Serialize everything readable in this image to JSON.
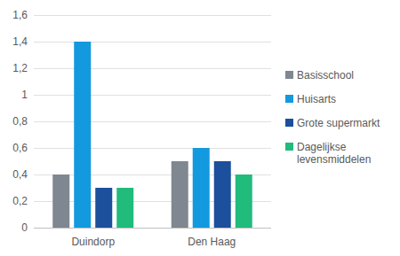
{
  "chart_data": {
    "type": "bar",
    "categories": [
      "Duindorp",
      "Den Haag"
    ],
    "series": [
      {
        "name": "Basisschool",
        "color": "#7f8790",
        "values": [
          0.4,
          0.5
        ]
      },
      {
        "name": "Huisarts",
        "color": "#1299de",
        "values": [
          1.4,
          0.6
        ]
      },
      {
        "name": "Grote supermarkt",
        "color": "#1c4f9c",
        "values": [
          0.3,
          0.5
        ]
      },
      {
        "name": "Dagelijkse levensmiddelen",
        "color": "#21bb7c",
        "values": [
          0.3,
          0.4
        ]
      }
    ],
    "ylim": [
      0,
      1.6
    ],
    "yticks": [
      0,
      {
        "value": 0.2,
        "label": "0,2"
      },
      {
        "value": 0.4,
        "label": "0,4"
      },
      {
        "value": 0.6,
        "label": "0,6"
      },
      {
        "value": 0.8,
        "label": "0,8"
      },
      1,
      {
        "value": 1.2,
        "label": "1,2"
      },
      {
        "value": 1.4,
        "label": "1,4"
      },
      {
        "value": 1.6,
        "label": "1,6"
      }
    ],
    "grid": true,
    "legend": "right"
  }
}
